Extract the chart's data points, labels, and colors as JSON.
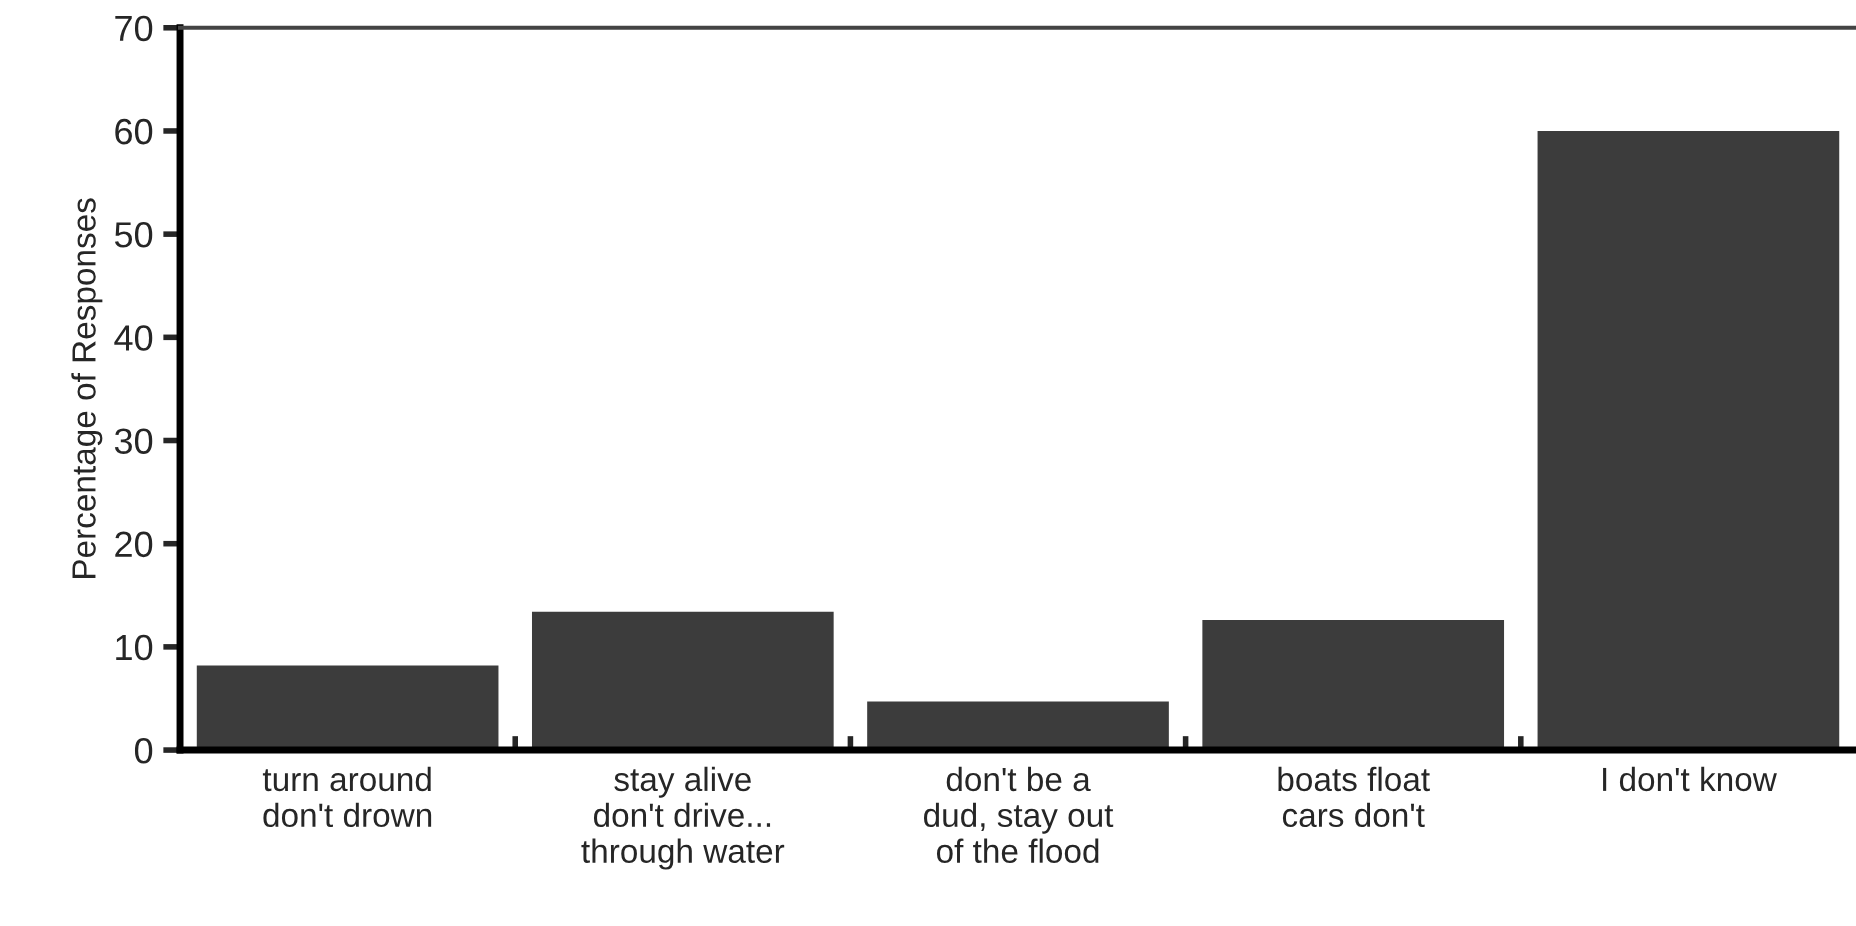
{
  "chart_data": {
    "type": "bar",
    "ylabel": "Percentage of Responses",
    "categories": [
      "turn around\ndon't drown",
      "stay alive\ndon't drive...\nthrough water",
      "don't be a\ndud, stay out\nof the flood",
      "boats float\ncars don't",
      "I don't know"
    ],
    "values": [
      8.2,
      13.4,
      4.7,
      12.6,
      60
    ],
    "color": "#3c3c3c",
    "ylim": [
      0,
      70
    ],
    "yticks": [
      0,
      10,
      20,
      30,
      40,
      50,
      60,
      70
    ],
    "grid": false,
    "legend": false
  }
}
